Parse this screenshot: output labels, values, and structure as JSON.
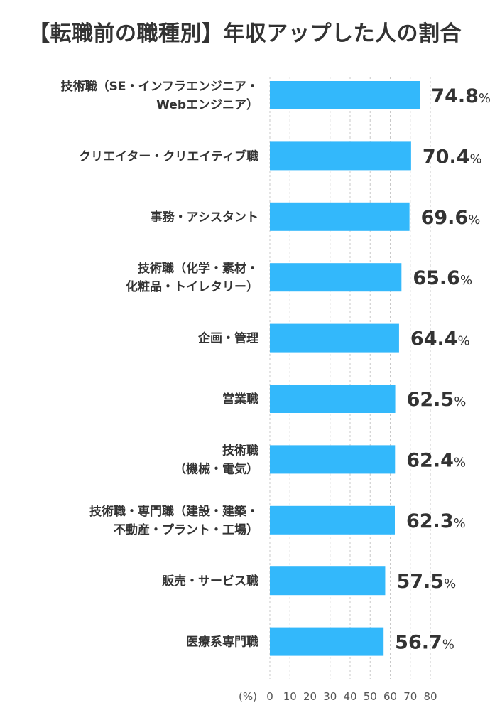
{
  "chart_data": {
    "type": "bar",
    "orientation": "horizontal",
    "title": "【転職前の職種別】年収アップした人の割合",
    "unit_label": "(%)",
    "value_suffix": "%",
    "categories": [
      [
        "技術職（SE・インフラエンジニア・",
        "Webエンジニア）"
      ],
      [
        "クリエイター・クリエイティブ職"
      ],
      [
        "事務・アシスタント"
      ],
      [
        "技術職（化学・素材・",
        "化粧品・トイレタリー）"
      ],
      [
        "企画・管理"
      ],
      [
        "営業職"
      ],
      [
        "技術職",
        "（機械・電気）"
      ],
      [
        "技術職・専門職（建設・建築・",
        "不動産・プラント・工場）"
      ],
      [
        "販売・サービス職"
      ],
      [
        "医療系専門職"
      ]
    ],
    "values": [
      74.8,
      70.4,
      69.6,
      65.6,
      64.4,
      62.5,
      62.4,
      62.3,
      57.5,
      56.7
    ],
    "xlim": [
      0,
      80
    ],
    "xticks": [
      0,
      10,
      20,
      30,
      40,
      50,
      60,
      70,
      80
    ],
    "grid": true,
    "bar_color": "#33b8fb"
  }
}
